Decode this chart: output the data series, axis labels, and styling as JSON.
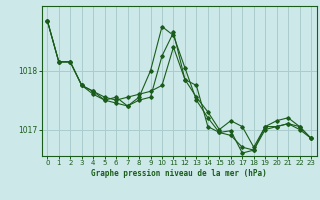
{
  "title": "Graphe pression niveau de la mer (hPa)",
  "bg_color": "#cce8e8",
  "line_color": "#1a5c1a",
  "grid_color": "#aacccc",
  "xlim": [
    -0.5,
    23.5
  ],
  "ylim": [
    1016.55,
    1019.1
  ],
  "yticks": [
    1017,
    1018
  ],
  "xticks": [
    0,
    1,
    2,
    3,
    4,
    5,
    6,
    7,
    8,
    9,
    10,
    11,
    12,
    13,
    14,
    15,
    16,
    17,
    18,
    19,
    20,
    21,
    22,
    23
  ],
  "series": [
    [
      1018.85,
      1018.15,
      1018.15,
      1017.75,
      1017.65,
      1017.55,
      1017.5,
      1017.55,
      1017.6,
      1017.65,
      1017.75,
      1018.4,
      1017.85,
      1017.55,
      1017.3,
      1017.0,
      1017.15,
      1017.05,
      1016.7,
      1017.05,
      1017.05,
      1017.1,
      1017.05,
      1016.85
    ],
    [
      1018.85,
      1018.15,
      1018.15,
      1017.75,
      1017.6,
      1017.5,
      1017.45,
      1017.4,
      1017.5,
      1017.55,
      1018.25,
      1018.65,
      1017.85,
      1017.75,
      1017.05,
      1016.95,
      1016.98,
      1016.6,
      1016.65,
      1017.0,
      1017.05,
      1017.1,
      1017.0,
      1016.85
    ],
    [
      1018.85,
      1018.15,
      1018.15,
      1017.75,
      1017.65,
      1017.5,
      1017.55,
      1017.4,
      1017.55,
      1018.0,
      1018.75,
      1018.6,
      1018.05,
      1017.5,
      1017.2,
      1016.95,
      1016.9,
      1016.7,
      1016.65,
      1017.05,
      1017.15,
      1017.2,
      1017.05,
      1016.85
    ]
  ]
}
